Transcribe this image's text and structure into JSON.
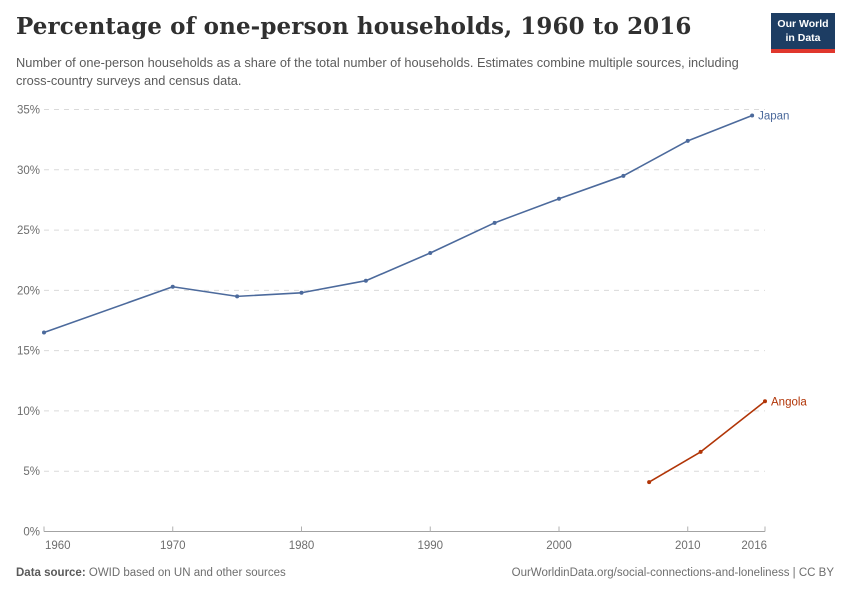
{
  "header": {
    "title": "Percentage of one-person households, 1960 to 2016",
    "subtitle": "Number of one-person households as a share of the total number of households. Estimates combine multiple sources, including cross-country surveys and census data.",
    "logo": {
      "line1": "Our World",
      "line2": "in Data",
      "bg_color": "#1d3d63",
      "bar_color": "#e0372d"
    }
  },
  "chart_data": {
    "type": "line",
    "title": "Percentage of one-person households, 1960 to 2016",
    "xlabel": "",
    "ylabel": "",
    "xlim": [
      1960,
      2016
    ],
    "ylim": [
      0,
      35
    ],
    "grid": "horizontal-dashed",
    "legend_position": "end-of-line-labels",
    "x_ticks": [
      1960,
      1970,
      1980,
      1990,
      2000,
      2010,
      2016
    ],
    "x_tick_labels": [
      "1960",
      "1970",
      "1980",
      "1990",
      "2000",
      "2010",
      "2016"
    ],
    "y_ticks": [
      0,
      5,
      10,
      15,
      20,
      25,
      30,
      35
    ],
    "y_tick_labels": [
      "0%",
      "5%",
      "10%",
      "15%",
      "20%",
      "25%",
      "30%",
      "35%"
    ],
    "series": [
      {
        "name": "Japan",
        "color": "#4C6A9C",
        "points": [
          [
            1960,
            16.5
          ],
          [
            1970,
            20.3
          ],
          [
            1975,
            19.5
          ],
          [
            1980,
            19.8
          ],
          [
            1985,
            20.8
          ],
          [
            1990,
            23.1
          ],
          [
            1995,
            25.6
          ],
          [
            2000,
            27.6
          ],
          [
            2005,
            29.5
          ],
          [
            2010,
            32.4
          ],
          [
            2015,
            34.5
          ]
        ]
      },
      {
        "name": "Angola",
        "color": "#B13507",
        "points": [
          [
            2007,
            4.1
          ],
          [
            2011,
            6.6
          ],
          [
            2016,
            10.8
          ]
        ]
      }
    ],
    "style": {
      "grid_color": "#dadada",
      "axis_color": "#a3a3a3",
      "tick_color": "#b0b0b0",
      "tick_label_color": "#6e6e6e"
    }
  },
  "footer": {
    "source_label": "Data source:",
    "source_text": "OWID based on UN and other sources",
    "url_text": "OurWorldinData.org/social-connections-and-loneliness | CC BY"
  }
}
